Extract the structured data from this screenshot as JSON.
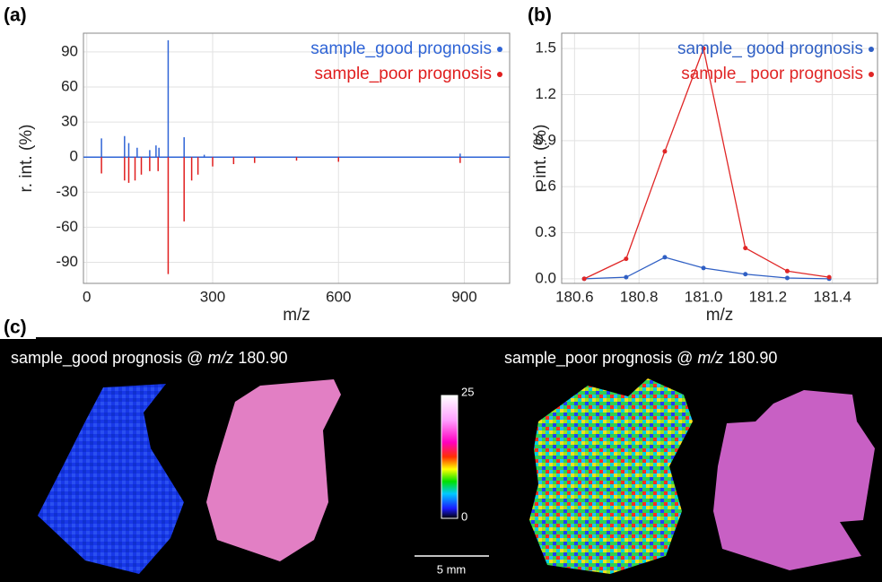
{
  "chart_data": [
    {
      "type": "bar",
      "panel_label": "(a)",
      "x_label": "m/z",
      "y_label": "r. int. (%)",
      "xlim": [
        -8,
        1008
      ],
      "xticks": [
        0,
        300,
        600,
        900
      ],
      "ylim": [
        -108,
        106
      ],
      "yticks": [
        90,
        60,
        30,
        0,
        -30,
        -60,
        -90
      ],
      "grid": true,
      "series": [
        {
          "name": "sample_good prognosis",
          "color": "#2f64d6",
          "x": [
            35,
            90,
            100,
            120,
            150,
            165,
            172,
            194,
            232,
            280,
            890
          ],
          "values": [
            16,
            18,
            12,
            8,
            6,
            10,
            8,
            100,
            17,
            2,
            3
          ]
        },
        {
          "name": "sample_poor prognosis",
          "color": "#e01e1e",
          "x": [
            35,
            90,
            100,
            115,
            130,
            150,
            170,
            194,
            232,
            250,
            265,
            300,
            350,
            400,
            500,
            600,
            890
          ],
          "values": [
            -14,
            -20,
            -22,
            -20,
            -15,
            -12,
            -12,
            -100,
            -55,
            -20,
            -15,
            -8,
            -6,
            -5,
            -3,
            -4,
            -5
          ]
        }
      ]
    },
    {
      "type": "line",
      "panel_label": "(b)",
      "x_label": "m/z",
      "y_label": "r. int. (%)",
      "xlim": [
        180.56,
        181.54
      ],
      "xticks": [
        180.6,
        180.8,
        {
          "value": 181,
          "label": "181.0"
        },
        181.2,
        181.4
      ],
      "ylim": [
        -0.03,
        1.6
      ],
      "yticks": [
        {
          "value": 0,
          "label": "0.0"
        },
        0.3,
        0.6,
        0.9,
        1.2,
        1.5
      ],
      "grid": true,
      "series": [
        {
          "name": "sample_ good prognosis",
          "color": "#2f5fc4",
          "x": [
            180.63,
            180.76,
            180.88,
            181.0,
            181.13,
            181.26,
            181.39
          ],
          "values": [
            0,
            0.01,
            0.14,
            0.07,
            0.03,
            0.005,
            0
          ]
        },
        {
          "name": "sample_ poor prognosis",
          "color": "#e02626",
          "x": [
            180.63,
            180.76,
            180.88,
            181.0,
            181.13,
            181.26,
            181.39
          ],
          "values": [
            0,
            0.13,
            0.83,
            1.5,
            0.2,
            0.05,
            0.01
          ]
        }
      ]
    }
  ],
  "panel_c": {
    "label": "(c)",
    "images": [
      {
        "caption": "sample_good  prognosis @ ",
        "caption_mz": "m/z",
        "caption_value": " 180.90"
      },
      {
        "caption": "sample_poor  prognosis @ ",
        "caption_mz": "m/z",
        "caption_value": " 180.90"
      }
    ],
    "colorbar": {
      "max": 25,
      "min": 0
    },
    "scale_bar": "5 mm"
  }
}
